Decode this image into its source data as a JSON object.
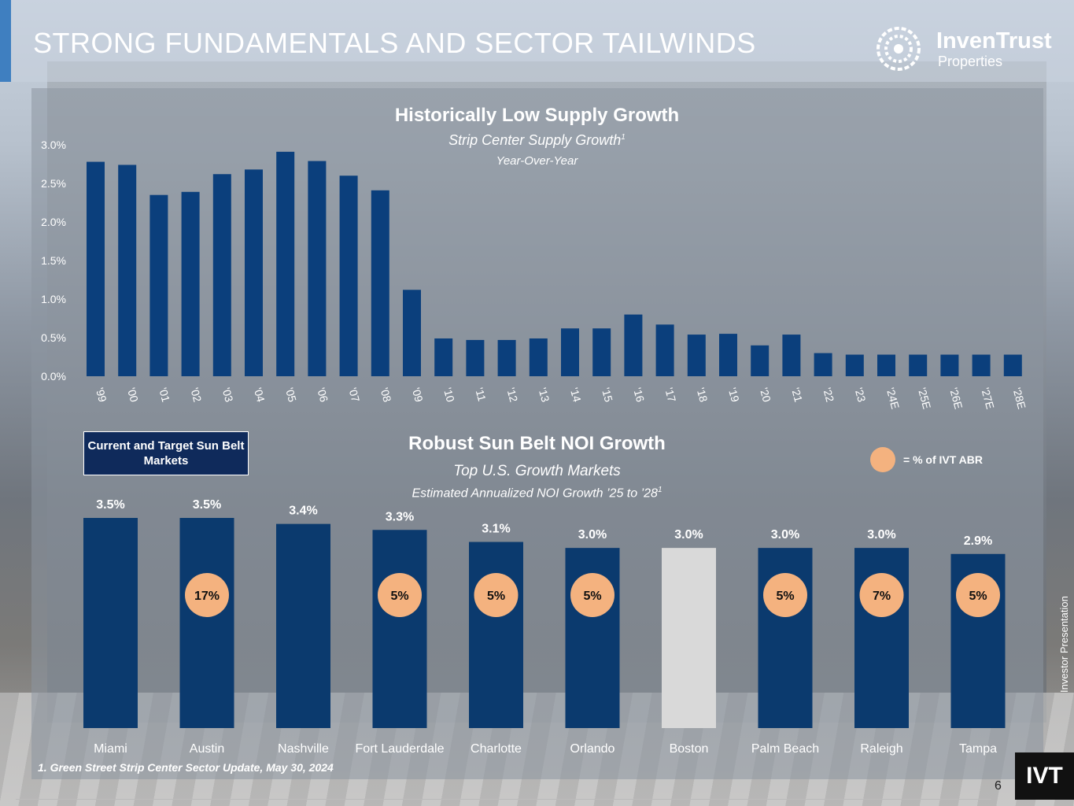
{
  "header": {
    "title": "STRONG FUNDAMENTALS AND SECTOR TAILWINDS",
    "logo_line1": "InvenTrust",
    "logo_line2": "Properties"
  },
  "chart_data": [
    {
      "type": "bar",
      "title": "Historically Low Supply Growth",
      "subtitle": "Strip Center Supply Growth",
      "subtitle_sup": "1",
      "subtitle2": "Year-Over-Year",
      "categories": [
        "'99",
        "'00",
        "'01",
        "'02",
        "'03",
        "'04",
        "'05",
        "'06",
        "'07",
        "'08",
        "'09",
        "'10",
        "'11",
        "'12",
        "'13",
        "'14",
        "'15",
        "'16",
        "'17",
        "'18",
        "'19",
        "'20",
        "'21",
        "'22",
        "'23",
        "'24E",
        "'25E",
        "'26E",
        "'27E",
        "'28E"
      ],
      "values": [
        2.78,
        2.74,
        2.35,
        2.39,
        2.62,
        2.68,
        2.91,
        2.79,
        2.6,
        2.41,
        1.12,
        0.49,
        0.47,
        0.47,
        0.49,
        0.62,
        0.62,
        0.8,
        0.67,
        0.54,
        0.55,
        0.4,
        0.54,
        0.3,
        0.28,
        0.28,
        0.28,
        0.28,
        0.28,
        0.28
      ],
      "y_ticks": [
        "0.0%",
        "0.5%",
        "1.0%",
        "1.5%",
        "2.0%",
        "2.5%",
        "3.0%"
      ],
      "ylim": [
        0,
        3.0
      ],
      "bar_color": "#0b3f7c"
    },
    {
      "type": "bar",
      "title": "Robust Sun Belt NOI Growth",
      "subtitle": "Top U.S. Growth Markets",
      "subtitle2": "Estimated Annualized NOI Growth ’25 to ’28",
      "subtitle2_sup": "1",
      "categories": [
        "Miami",
        "Austin",
        "Nashville",
        "Fort Lauderdale",
        "Charlotte",
        "Orlando",
        "Boston",
        "Palm Beach",
        "Raleigh",
        "Tampa"
      ],
      "values": [
        3.5,
        3.5,
        3.4,
        3.3,
        3.1,
        3.0,
        3.0,
        3.0,
        3.0,
        2.9
      ],
      "labels": [
        "3.5%",
        "3.5%",
        "3.4%",
        "3.3%",
        "3.1%",
        "3.0%",
        "3.0%",
        "3.0%",
        "3.0%",
        "2.9%"
      ],
      "abr_labels": [
        "",
        "17%",
        "",
        "5%",
        "5%",
        "5%",
        "",
        "5%",
        "7%",
        "5%"
      ],
      "highlight": [
        true,
        true,
        true,
        true,
        true,
        true,
        false,
        true,
        true,
        true
      ],
      "ylim": [
        0,
        3.6
      ],
      "bar_color": "#0b3a6e",
      "muted_color": "#d9d9d9",
      "badge_color": "#f4b27f"
    }
  ],
  "markets_box": "Current and Target Sun Belt Markets",
  "legend": {
    "label": "= % of IVT ABR",
    "color": "#f4b27f"
  },
  "footnote": "1.  Green Street Strip Center Sector Update, May 30, 2024",
  "page_number": "6",
  "side_label": "Investor Presentation",
  "badge": "IVT"
}
